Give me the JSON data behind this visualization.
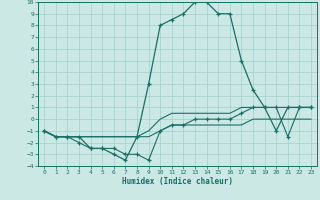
{
  "xlabel": "Humidex (Indice chaleur)",
  "xlim": [
    -0.5,
    23.5
  ],
  "ylim": [
    -4,
    10
  ],
  "yticks": [
    10,
    9,
    8,
    7,
    6,
    5,
    4,
    3,
    2,
    1,
    0,
    -1,
    -2,
    -3,
    -4
  ],
  "xticks": [
    0,
    1,
    2,
    3,
    4,
    5,
    6,
    7,
    8,
    9,
    10,
    11,
    12,
    13,
    14,
    15,
    16,
    17,
    18,
    19,
    20,
    21,
    22,
    23
  ],
  "bg_color": "#cce8e4",
  "grid_color": "#a0d0cc",
  "line_color": "#1a6e68",
  "series_main_y": [
    -1,
    -1.5,
    -1.5,
    -1.5,
    -2.5,
    -2.5,
    -3,
    -3.5,
    -1.5,
    3,
    8,
    8.5,
    9,
    10,
    10,
    9,
    9,
    5,
    2.5,
    1,
    -1,
    1,
    1,
    1
  ],
  "series_upper_y": [
    -1,
    -1.5,
    -1.5,
    -1.5,
    -1.5,
    -1.5,
    -1.5,
    -1.5,
    -1.5,
    -1,
    0,
    0.5,
    0.5,
    0.5,
    0.5,
    0.5,
    0.5,
    1,
    1,
    1,
    1,
    1,
    1,
    1
  ],
  "series_lower_y": [
    -1,
    -1.5,
    -1.5,
    -1.5,
    -1.5,
    -1.5,
    -1.5,
    -1.5,
    -1.5,
    -1.5,
    -1,
    -0.5,
    -0.5,
    -0.5,
    -0.5,
    -0.5,
    -0.5,
    -0.5,
    0,
    0,
    0,
    0,
    0,
    0
  ],
  "series_marker_y": [
    -1,
    -1.5,
    -1.5,
    -2,
    -2.5,
    -2.5,
    -2.5,
    -3,
    -3,
    -3.5,
    -1,
    -0.5,
    -0.5,
    0,
    0,
    0,
    0,
    0.5,
    1,
    1,
    1,
    -1.5,
    1,
    1
  ]
}
